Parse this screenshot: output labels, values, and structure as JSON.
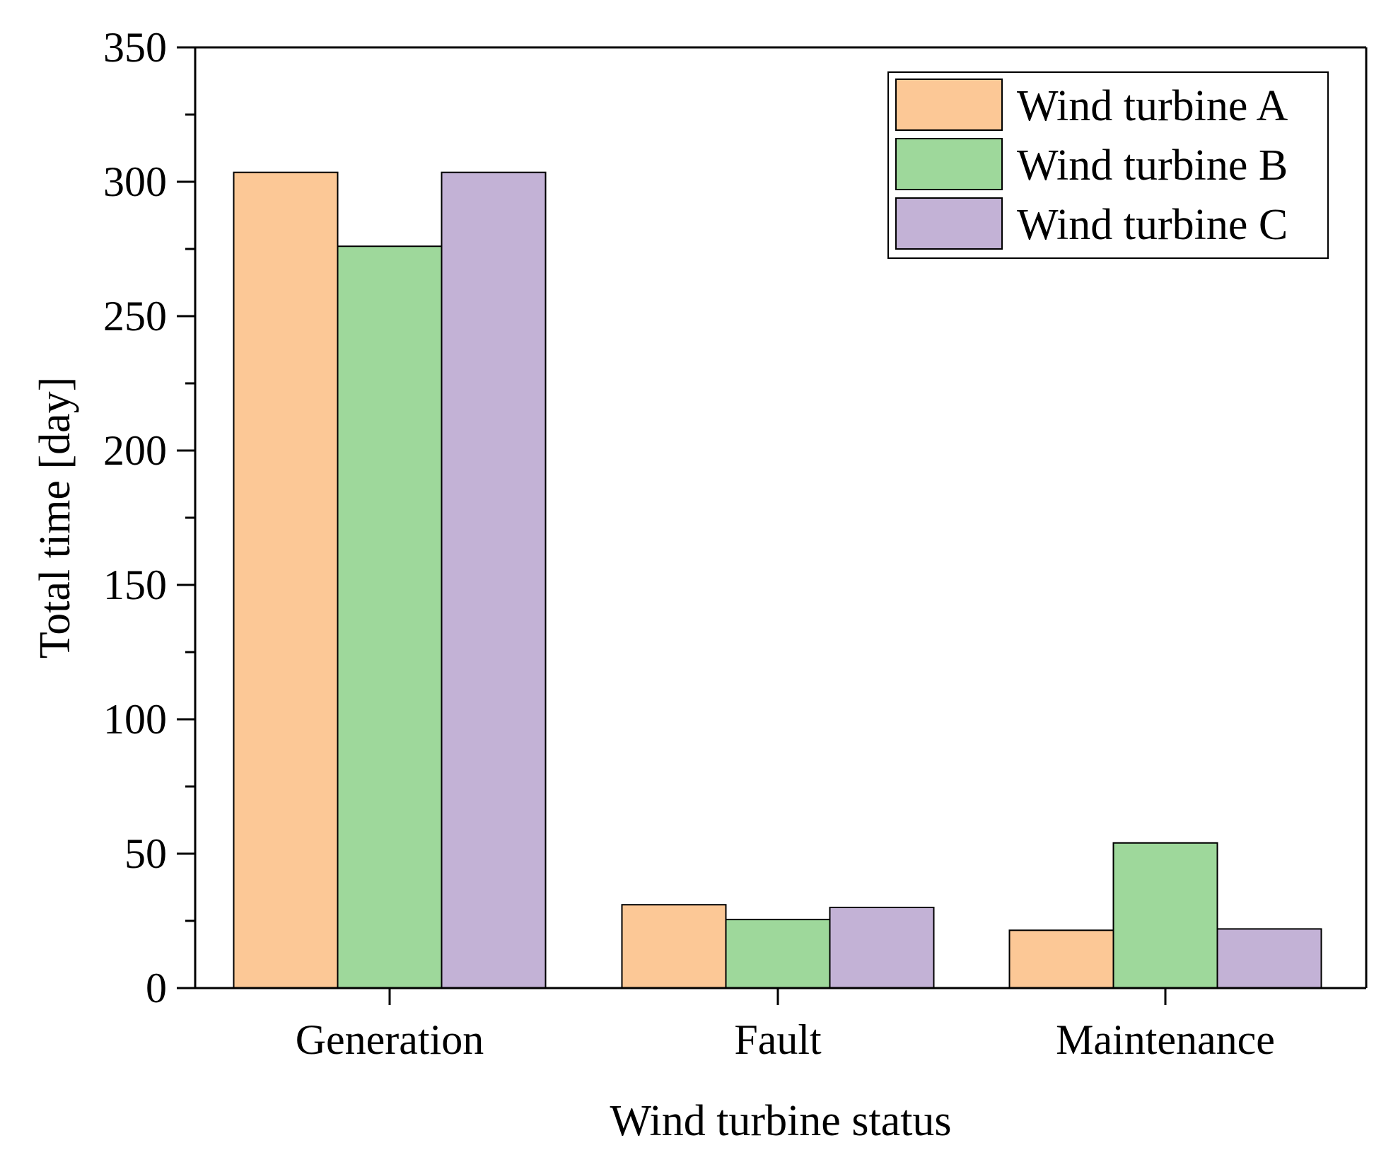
{
  "chart_data": {
    "type": "bar",
    "title": "",
    "xlabel": "Wind turbine status",
    "ylabel": "Total time [day]",
    "ylim": [
      0,
      350
    ],
    "yticks": [
      0,
      50,
      100,
      150,
      200,
      250,
      300,
      350
    ],
    "ytick_labels": [
      "0",
      "50",
      "100",
      "150",
      "200",
      "250",
      "300",
      "350"
    ],
    "minor_ytick_step": 25,
    "categories": [
      "Generation",
      "Fault",
      "Maintenance"
    ],
    "series": [
      {
        "name": "Wind turbine A",
        "color": "#fcc896",
        "values": [
          303.5,
          31,
          21.5
        ]
      },
      {
        "name": "Wind turbine B",
        "color": "#9ed89b",
        "values": [
          276,
          25.5,
          54
        ]
      },
      {
        "name": "Wind turbine C",
        "color": "#c3b2d6",
        "values": [
          303.5,
          30,
          22
        ]
      }
    ],
    "legend_position": "top-right",
    "grid": false
  }
}
